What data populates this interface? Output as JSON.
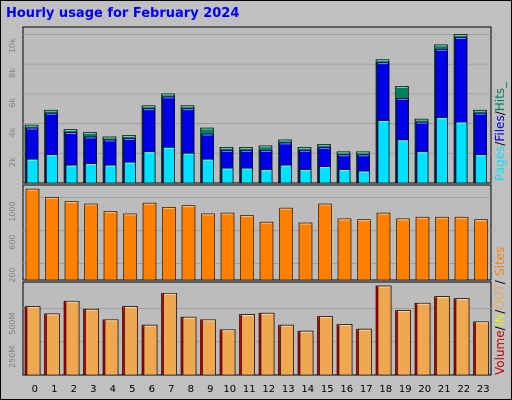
{
  "title": "Hourly usage for February 2024",
  "colors": {
    "background": "#c0c0c0",
    "panel": "#bcbcbc",
    "grid": "#9a9a9a",
    "title": "#0000ff",
    "hits": "#00805c",
    "files": "#0000e6",
    "pages": "#00e0ff",
    "sites": "#ff8000",
    "volume": "#c80000",
    "in": "#e8e820",
    "out": "#f0a850"
  },
  "chart_data": [
    {
      "type": "bar",
      "title": "Hourly usage for February 2024",
      "categories": [
        "0",
        "1",
        "2",
        "3",
        "4",
        "5",
        "6",
        "7",
        "8",
        "9",
        "10",
        "11",
        "12",
        "13",
        "14",
        "15",
        "16",
        "17",
        "18",
        "19",
        "20",
        "21",
        "22",
        "23"
      ],
      "yticks": [
        "2k",
        "4k",
        "6k",
        "8k",
        "10k"
      ],
      "ylim": [
        0,
        10500
      ],
      "legend_labels": [
        "Pages",
        "/",
        "Files",
        "/",
        "Hits",
        "_"
      ],
      "series": [
        {
          "name": "Hits",
          "values": [
            3900,
            4900,
            3600,
            3400,
            3100,
            3200,
            5200,
            6000,
            5200,
            3700,
            2400,
            2400,
            2500,
            2900,
            2400,
            2600,
            2100,
            2100,
            8300,
            6500,
            4300,
            9300,
            10000,
            4900
          ]
        },
        {
          "name": "Files",
          "values": [
            3700,
            4700,
            3400,
            3100,
            2900,
            3000,
            5000,
            5800,
            5000,
            3300,
            2200,
            2200,
            2200,
            2700,
            2200,
            2400,
            1900,
            1900,
            8100,
            5700,
            4100,
            9000,
            9800,
            4700
          ]
        },
        {
          "name": "Pages",
          "values": [
            1600,
            1900,
            1200,
            1300,
            1200,
            1400,
            2100,
            2400,
            2000,
            1600,
            1000,
            1000,
            900,
            1200,
            900,
            1100,
            900,
            800,
            4200,
            2900,
            2100,
            4400,
            4100,
            1900
          ]
        }
      ]
    },
    {
      "type": "bar",
      "categories": [
        "0",
        "1",
        "2",
        "3",
        "4",
        "5",
        "6",
        "7",
        "8",
        "9",
        "10",
        "11",
        "12",
        "13",
        "14",
        "15",
        "16",
        "17",
        "18",
        "19",
        "20",
        "21",
        "22",
        "23"
      ],
      "yticks": [
        "200",
        "600",
        "1000"
      ],
      "ylim": [
        0,
        1150
      ],
      "legend_labels": [
        "Sites"
      ],
      "series": [
        {
          "name": "Sites",
          "values": [
            1100,
            1000,
            950,
            920,
            830,
            800,
            930,
            880,
            900,
            800,
            810,
            780,
            700,
            870,
            690,
            920,
            740,
            730,
            810,
            740,
            760,
            760,
            760,
            730
          ]
        }
      ]
    },
    {
      "type": "bar",
      "categories": [
        "0",
        "1",
        "2",
        "3",
        "4",
        "5",
        "6",
        "7",
        "8",
        "9",
        "10",
        "11",
        "12",
        "13",
        "14",
        "15",
        "16",
        "17",
        "18",
        "19",
        "20",
        "21",
        "22",
        "23"
      ],
      "yticks": [
        "250M",
        "500M"
      ],
      "ylim": [
        0,
        700
      ],
      "legend_labels": [
        "Volume",
        "/",
        "IN",
        "/",
        "OUT",
        "/"
      ],
      "series": [
        {
          "name": "Volume",
          "values": [
            515,
            460,
            555,
            495,
            415,
            515,
            375,
            615,
            435,
            415,
            340,
            455,
            465,
            375,
            330,
            440,
            380,
            345,
            670,
            485,
            540,
            590,
            575,
            400
          ]
        },
        {
          "name": "IN",
          "values": [
            0,
            0,
            0,
            0,
            0,
            0,
            0,
            0,
            0,
            0,
            0,
            0,
            0,
            0,
            0,
            0,
            0,
            0,
            0,
            0,
            0,
            0,
            0,
            0
          ]
        },
        {
          "name": "OUT",
          "values": [
            515,
            460,
            555,
            495,
            415,
            515,
            375,
            615,
            435,
            415,
            340,
            455,
            465,
            375,
            330,
            440,
            380,
            345,
            670,
            485,
            540,
            590,
            575,
            400
          ]
        }
      ]
    }
  ]
}
